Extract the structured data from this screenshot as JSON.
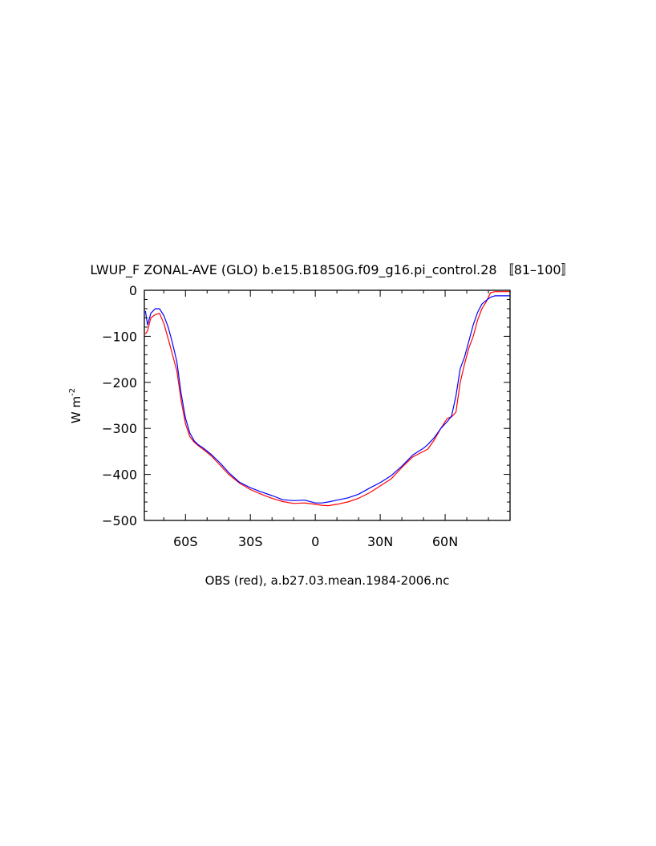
{
  "chart_data": {
    "type": "line",
    "title": "LWUP_F ZONAL-AVE (GLO) b.e15.B1850G.f09_g16.pi_control.28 〚81–100〛",
    "subtitle": "OBS (red), a.b27.03.mean.1984-2006.nc",
    "xlabel": "",
    "ylabel": "W m",
    "ylabel_superscript": "-2",
    "xlim": [
      -79,
      90
    ],
    "ylim": [
      -500,
      0
    ],
    "x_ticks": [
      {
        "value": -60,
        "label": "60S"
      },
      {
        "value": -30,
        "label": "30S"
      },
      {
        "value": 0,
        "label": "0"
      },
      {
        "value": 30,
        "label": "30N"
      },
      {
        "value": 60,
        "label": "60N"
      }
    ],
    "y_ticks": [
      {
        "value": 0,
        "label": "0"
      },
      {
        "value": -100,
        "label": "−100"
      },
      {
        "value": -200,
        "label": "−200"
      },
      {
        "value": -300,
        "label": "−300"
      },
      {
        "value": -400,
        "label": "−400"
      },
      {
        "value": -500,
        "label": "−500"
      }
    ],
    "grid": false,
    "series": [
      {
        "color": "#0000ff",
        "x": [
          -78.5,
          -77.5,
          -76,
          -74,
          -72,
          -70,
          -68,
          -66,
          -64,
          -62,
          -60,
          -58,
          -56,
          -54,
          -52,
          -48,
          -44,
          -40,
          -35,
          -30,
          -25,
          -20,
          -15,
          -10,
          -5,
          0,
          3,
          6,
          10,
          15,
          20,
          25,
          30,
          35,
          40,
          45,
          50,
          52,
          55,
          58,
          61,
          63,
          65,
          67,
          69,
          71,
          73,
          75,
          77,
          79,
          81,
          83,
          85,
          90
        ],
        "y": [
          -45,
          -75,
          -50,
          -40,
          -40,
          -55,
          -80,
          -115,
          -155,
          -225,
          -278,
          -310,
          -327,
          -336,
          -342,
          -357,
          -375,
          -396,
          -417,
          -429,
          -438,
          -446,
          -455,
          -457,
          -456,
          -462,
          -462,
          -460,
          -456,
          -451,
          -443,
          -430,
          -418,
          -403,
          -382,
          -358,
          -343,
          -335,
          -320,
          -300,
          -285,
          -273,
          -230,
          -170,
          -145,
          -110,
          -75,
          -48,
          -30,
          -22,
          -15,
          -12,
          -12,
          -12
        ]
      },
      {
        "color": "#ff0000",
        "x": [
          -78.5,
          -77.5,
          -76,
          -74,
          -72,
          -70,
          -68,
          -66,
          -64,
          -62,
          -60,
          -58,
          -56,
          -54,
          -52,
          -48,
          -44,
          -40,
          -35,
          -30,
          -25,
          -20,
          -15,
          -10,
          -5,
          0,
          3,
          6,
          10,
          15,
          20,
          25,
          30,
          35,
          40,
          45,
          50,
          52,
          55,
          58,
          61,
          63,
          65,
          67,
          69,
          71,
          73,
          75,
          77,
          79,
          81,
          83,
          85,
          90
        ],
        "y": [
          -95,
          -88,
          -60,
          -53,
          -50,
          -72,
          -105,
          -140,
          -175,
          -240,
          -290,
          -318,
          -330,
          -338,
          -345,
          -360,
          -380,
          -400,
          -419,
          -433,
          -443,
          -452,
          -459,
          -463,
          -462,
          -465,
          -467,
          -468,
          -465,
          -460,
          -452,
          -440,
          -425,
          -410,
          -385,
          -362,
          -350,
          -345,
          -325,
          -300,
          -278,
          -275,
          -265,
          -200,
          -160,
          -125,
          -100,
          -65,
          -40,
          -25,
          -5,
          -3,
          -3,
          -3
        ]
      }
    ]
  }
}
